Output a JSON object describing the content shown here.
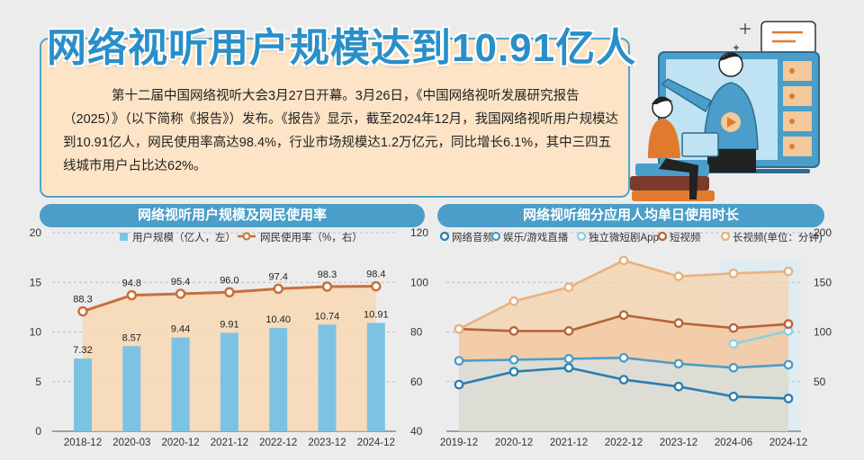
{
  "headline": "网络视听用户规模达到10.91亿人",
  "intro": "第十二届中国网络视听大会3月27日开幕。3月26日，《中国网络视听发展研究报告（2025）》（以下简称《报告》）发布。《报告》显示，截至2024年12月，我国网络视听用户规模达到10.91亿人，网民使用率高达98.4%，行业市场规模达1.2万亿元，同比增长6.1%，其中三四五线城市用户占比达62%。",
  "chart_data": [
    {
      "type": "bar",
      "title": "网络视听用户规模及网民使用率",
      "categories": [
        "2018-12",
        "2020-03",
        "2020-12",
        "2021-12",
        "2022-12",
        "2023-12",
        "2024-12"
      ],
      "series": [
        {
          "name": "用户规模（亿人，左）",
          "kind": "bar",
          "axis": "left",
          "values": [
            7.32,
            8.57,
            9.44,
            9.91,
            10.4,
            10.74,
            10.91
          ],
          "labels": [
            "7.32",
            "8.57",
            "9.44",
            "9.91",
            "10.40",
            "10.74",
            "10.91"
          ]
        },
        {
          "name": "网民使用率（%，右）",
          "kind": "line",
          "axis": "right",
          "values": [
            88.3,
            94.8,
            95.4,
            96.0,
            97.4,
            98.3,
            98.4
          ],
          "labels": [
            "88.3",
            "94.8",
            "95.4",
            "96.0",
            "97.4",
            "98.3",
            "98.4"
          ]
        }
      ],
      "y_left": {
        "range": [
          0,
          20
        ],
        "ticks": [
          "0",
          "5",
          "10",
          "15",
          "20"
        ]
      },
      "y_right": {
        "range": [
          40,
          120
        ],
        "ticks": [
          "40",
          "60",
          "80",
          "100",
          "120"
        ]
      },
      "colors": {
        "bar": "#7cc3e3",
        "line": "#c7703b",
        "fill": "#f8d8b4"
      }
    },
    {
      "type": "line",
      "title": "网络视听细分应用人均单日使用时长",
      "categories": [
        "2019-12",
        "2020-12",
        "2021-12",
        "2022-12",
        "2023-12",
        "2024-06",
        "2024-12"
      ],
      "series": [
        {
          "name": "网络音频",
          "color": "#2a7fb0",
          "values": [
            47,
            60,
            64,
            52,
            45,
            35,
            33
          ]
        },
        {
          "name": "娱乐/游戏直播",
          "color": "#4f9cc6",
          "values": [
            71,
            72,
            73,
            74,
            68,
            64,
            67
          ]
        },
        {
          "name": "独立微短剧App",
          "color": "#8ecfe3",
          "values": [
            null,
            null,
            null,
            null,
            null,
            88,
            101
          ]
        },
        {
          "name": "短视频",
          "color": "#b8633a",
          "values": [
            103,
            101,
            101,
            117,
            109,
            104,
            108
          ]
        },
        {
          "name": "长视频(单位：分钟)",
          "color": "#e8b27e",
          "values": [
            103,
            131,
            145,
            172,
            156,
            159,
            161
          ]
        }
      ],
      "y": {
        "range": [
          0,
          200
        ],
        "ticks": [
          "50",
          "100",
          "150",
          "200"
        ]
      }
    }
  ]
}
